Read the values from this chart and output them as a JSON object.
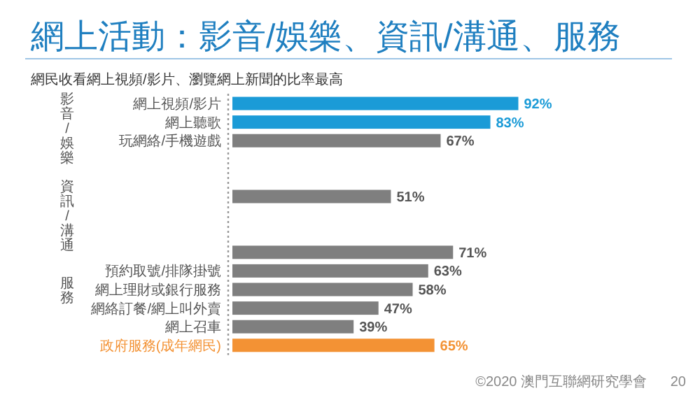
{
  "chart_data": {
    "type": "bar",
    "orientation": "horizontal",
    "title": "網上活動：影音/娛樂、資訊/溝通、服務",
    "subtitle": "網民收看網上視頻/影片、瀏覽網上新聞的比率最高",
    "categories": [
      "網上視頻/影片",
      "網上聽歌",
      "玩網絡/手機遊戲",
      null,
      null,
      null,
      null,
      null,
      null,
      "預約取號/排隊掛號",
      "網上理財或銀行服務",
      "網絡訂餐/網上叫外賣",
      "網上召車",
      "政府服務(成年網民)"
    ],
    "values": [
      92,
      83,
      67,
      null,
      null,
      51,
      null,
      null,
      71,
      63,
      58,
      47,
      39,
      65
    ],
    "value_labels": [
      "92%",
      "83%",
      "67%",
      null,
      null,
      "51%",
      null,
      null,
      "71%",
      "63%",
      "58%",
      "47%",
      "39%",
      "65%"
    ],
    "colors": [
      "#1b9bd7",
      "#1b9bd7",
      "#7f7f7f",
      "#7f7f7f",
      "#7f7f7f",
      "#7f7f7f",
      "#7f7f7f",
      "#7f7f7f",
      "#7f7f7f",
      "#7f7f7f",
      "#7f7f7f",
      "#7f7f7f",
      "#7f7f7f",
      "#f39234"
    ],
    "annotations": [
      "影音/娛樂",
      "資訊/溝通",
      "服務",
      "©2020 澳門互聯網研究學會",
      "20"
    ]
  }
}
